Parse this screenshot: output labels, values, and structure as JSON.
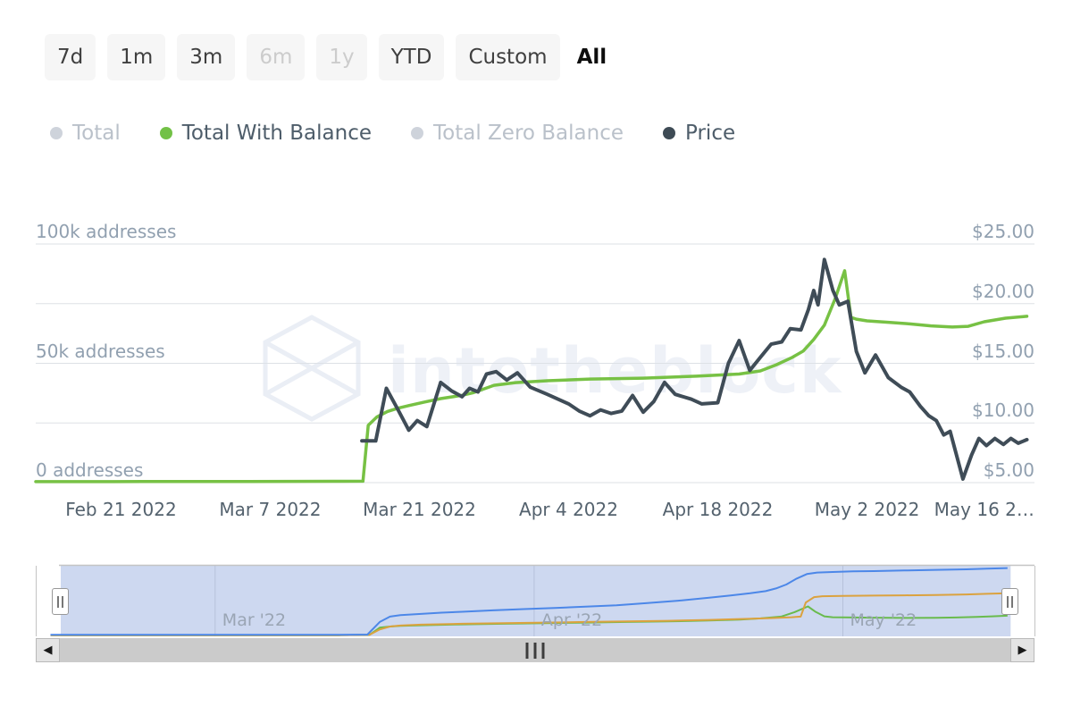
{
  "page": {
    "background": "#ffffff"
  },
  "toolbar": {
    "buttons": [
      {
        "label": "7d",
        "state": "default"
      },
      {
        "label": "1m",
        "state": "default"
      },
      {
        "label": "3m",
        "state": "default"
      },
      {
        "label": "6m",
        "state": "disabled"
      },
      {
        "label": "1y",
        "state": "disabled"
      },
      {
        "label": "YTD",
        "state": "default"
      },
      {
        "label": "Custom",
        "state": "default"
      },
      {
        "label": "All",
        "state": "selected"
      }
    ]
  },
  "legend": {
    "items": [
      {
        "label": "Total",
        "marker_color": "#ced3db",
        "text_color": "#bac1ca",
        "active": false
      },
      {
        "label": "Total With Balance",
        "marker_color": "#72c146",
        "text_color": "#4e5d6a",
        "active": true
      },
      {
        "label": "Total Zero Balance",
        "marker_color": "#ced3db",
        "text_color": "#bac1ca",
        "active": false
      },
      {
        "label": "Price",
        "marker_color": "#3e4b55",
        "text_color": "#4e5d6a",
        "active": true
      }
    ]
  },
  "watermark": {
    "text": "intotheblock"
  },
  "chart_data": {
    "type": "line",
    "title": "",
    "x_axis": {
      "unit": "days since Feb 13 2022",
      "range_days": [
        0,
        93.7
      ],
      "tick_labels": [
        {
          "day": 8,
          "label": "Feb 21 2022"
        },
        {
          "day": 22,
          "label": "Mar 7 2022"
        },
        {
          "day": 36,
          "label": "Mar 21 2022"
        },
        {
          "day": 50,
          "label": "Apr 4 2022"
        },
        {
          "day": 64,
          "label": "Apr 18 2022"
        },
        {
          "day": 78,
          "label": "May 2 2022"
        },
        {
          "day": 89,
          "label": "May 16 2…"
        }
      ]
    },
    "y_left": {
      "title": "addresses",
      "range_k": [
        0,
        100
      ],
      "grid_k": [
        100,
        75,
        50,
        25,
        0
      ],
      "ticks": [
        {
          "k": 100,
          "label": "100k addresses"
        },
        {
          "k": 50,
          "label": "50k addresses"
        },
        {
          "k": 0,
          "label": "0 addresses"
        }
      ]
    },
    "y_right": {
      "title": "price USD",
      "range": [
        5,
        25
      ],
      "ticks": [
        {
          "v": 25,
          "label": "$25.00"
        },
        {
          "v": 20,
          "label": "$20.00"
        },
        {
          "v": 15,
          "label": "$15.00"
        },
        {
          "v": 10,
          "label": "$10.00"
        },
        {
          "v": 5,
          "label": "$5.00"
        }
      ]
    },
    "series": [
      {
        "name": "Total With Balance",
        "axis": "addresses_k",
        "color": "#77c144",
        "width": 3.5,
        "points": [
          [
            0,
            0.4
          ],
          [
            10,
            0.45
          ],
          [
            20,
            0.5
          ],
          [
            28,
            0.55
          ],
          [
            30.7,
            0.6
          ],
          [
            31.2,
            24
          ],
          [
            32,
            27.5
          ],
          [
            33,
            29.8
          ],
          [
            34,
            31.2
          ],
          [
            35,
            32.3
          ],
          [
            36.5,
            33.8
          ],
          [
            38,
            35.2
          ],
          [
            40,
            36.6
          ],
          [
            41,
            37.6
          ],
          [
            43,
            40.8
          ],
          [
            45,
            41.9
          ],
          [
            48,
            42.7
          ],
          [
            52,
            43.4
          ],
          [
            57,
            43.8
          ],
          [
            62,
            44.6
          ],
          [
            66,
            45.5
          ],
          [
            68,
            46.8
          ],
          [
            69.5,
            49.4
          ],
          [
            71,
            52.5
          ],
          [
            72,
            55.1
          ],
          [
            73,
            60
          ],
          [
            74,
            66
          ],
          [
            75,
            77
          ],
          [
            75.9,
            88.8
          ],
          [
            76.5,
            69.3
          ],
          [
            77,
            68.5
          ],
          [
            78,
            67.8
          ],
          [
            80,
            67.2
          ],
          [
            82,
            66.5
          ],
          [
            84,
            65.7
          ],
          [
            86,
            65.2
          ],
          [
            87.5,
            65.5
          ],
          [
            89,
            67.4
          ],
          [
            91,
            68.9
          ],
          [
            93,
            69.7
          ]
        ]
      },
      {
        "name": "Price",
        "axis": "price",
        "color": "#3f4c57",
        "width": 4,
        "points": [
          [
            30.6,
            8.5
          ],
          [
            31.9,
            8.5
          ],
          [
            32.9,
            12.9
          ],
          [
            34,
            11.1
          ],
          [
            35,
            9.4
          ],
          [
            35.8,
            10.2
          ],
          [
            36.7,
            9.7
          ],
          [
            38,
            13.4
          ],
          [
            39,
            12.7
          ],
          [
            40,
            12.2
          ],
          [
            40.7,
            12.9
          ],
          [
            41.5,
            12.6
          ],
          [
            42.3,
            14.1
          ],
          [
            43.2,
            14.3
          ],
          [
            44.2,
            13.6
          ],
          [
            45.2,
            14.2
          ],
          [
            46.4,
            13.0
          ],
          [
            48,
            12.4
          ],
          [
            50,
            11.6
          ],
          [
            51,
            11.0
          ],
          [
            52,
            10.6
          ],
          [
            53,
            11.1
          ],
          [
            54,
            10.8
          ],
          [
            55,
            11.0
          ],
          [
            56,
            12.3
          ],
          [
            57,
            10.9
          ],
          [
            58,
            11.8
          ],
          [
            59,
            13.4
          ],
          [
            60,
            12.4
          ],
          [
            61.5,
            12.0
          ],
          [
            62.5,
            11.6
          ],
          [
            64,
            11.7
          ],
          [
            65,
            15.0
          ],
          [
            66,
            16.9
          ],
          [
            67,
            14.4
          ],
          [
            68,
            15.5
          ],
          [
            69,
            16.6
          ],
          [
            70,
            16.8
          ],
          [
            70.8,
            17.9
          ],
          [
            71.8,
            17.8
          ],
          [
            72.5,
            19.5
          ],
          [
            73,
            21.1
          ],
          [
            73.4,
            19.9
          ],
          [
            74,
            23.7
          ],
          [
            74.8,
            21.1
          ],
          [
            75.4,
            19.9
          ],
          [
            76.2,
            20.2
          ],
          [
            77,
            16.0
          ],
          [
            77.8,
            14.2
          ],
          [
            78.8,
            15.7
          ],
          [
            80,
            13.8
          ],
          [
            81.2,
            13.0
          ],
          [
            82,
            12.6
          ],
          [
            83,
            11.4
          ],
          [
            83.8,
            10.6
          ],
          [
            84.5,
            10.2
          ],
          [
            85.2,
            9.0
          ],
          [
            85.8,
            9.3
          ],
          [
            87,
            5.3
          ],
          [
            87.8,
            7.3
          ],
          [
            88.5,
            8.7
          ],
          [
            89.2,
            8.1
          ],
          [
            90,
            8.7
          ],
          [
            90.8,
            8.2
          ],
          [
            91.5,
            8.7
          ],
          [
            92.2,
            8.3
          ],
          [
            93,
            8.6
          ]
        ]
      }
    ],
    "navigator_series": [
      {
        "name": "Total With Balance",
        "color": "#69bb4d",
        "width": 2,
        "unit": "k addresses",
        "points": [
          [
            0,
            1
          ],
          [
            28,
            1
          ],
          [
            31,
            2
          ],
          [
            32,
            26
          ],
          [
            33,
            30
          ],
          [
            34,
            32
          ],
          [
            36,
            34
          ],
          [
            40,
            37
          ],
          [
            44,
            39
          ],
          [
            48,
            41
          ],
          [
            52,
            43
          ],
          [
            56,
            45
          ],
          [
            60,
            47
          ],
          [
            64,
            50
          ],
          [
            67,
            53
          ],
          [
            69,
            57
          ],
          [
            71,
            63
          ],
          [
            72.3,
            78
          ],
          [
            73.6,
            97
          ],
          [
            74.3,
            80
          ],
          [
            75.2,
            64
          ],
          [
            76,
            61
          ],
          [
            78,
            60
          ],
          [
            80,
            59.5
          ],
          [
            83,
            58.5
          ],
          [
            86,
            59
          ],
          [
            88,
            60
          ],
          [
            90,
            62
          ],
          [
            91.5,
            64
          ],
          [
            93,
            66
          ]
        ]
      },
      {
        "name": "Total Zero Balance",
        "color": "#dba23f",
        "width": 2,
        "unit": "k addresses",
        "points": [
          [
            0,
            1
          ],
          [
            28,
            1
          ],
          [
            31,
            2
          ],
          [
            32,
            20
          ],
          [
            33,
            30
          ],
          [
            34,
            33
          ],
          [
            36,
            36
          ],
          [
            40,
            39
          ],
          [
            44,
            41
          ],
          [
            48,
            43
          ],
          [
            52,
            45
          ],
          [
            56,
            47
          ],
          [
            60,
            49
          ],
          [
            64,
            52
          ],
          [
            67,
            55
          ],
          [
            70,
            58
          ],
          [
            72,
            61
          ],
          [
            72.9,
            63
          ],
          [
            73.4,
            110
          ],
          [
            74.2,
            128
          ],
          [
            75,
            131
          ],
          [
            77,
            132
          ],
          [
            80,
            133
          ],
          [
            83,
            134
          ],
          [
            86,
            135
          ],
          [
            89,
            137
          ],
          [
            91,
            139
          ],
          [
            93,
            141
          ]
        ]
      },
      {
        "name": "Total",
        "color": "#4c87e8",
        "width": 2,
        "unit": "k addresses",
        "points": [
          [
            0,
            2
          ],
          [
            28,
            2
          ],
          [
            30.8,
            3
          ],
          [
            32,
            45
          ],
          [
            33,
            63
          ],
          [
            34,
            68
          ],
          [
            36,
            72
          ],
          [
            38,
            76
          ],
          [
            40,
            79
          ],
          [
            43,
            84
          ],
          [
            46,
            88
          ],
          [
            49,
            92
          ],
          [
            52,
            96
          ],
          [
            55,
            101
          ],
          [
            58,
            108
          ],
          [
            61,
            116
          ],
          [
            64,
            126
          ],
          [
            66,
            133
          ],
          [
            68,
            141
          ],
          [
            69.5,
            148
          ],
          [
            70.5,
            157
          ],
          [
            71.5,
            170
          ],
          [
            72.5,
            190
          ],
          [
            73.5,
            205
          ],
          [
            74.5,
            210
          ],
          [
            76,
            212
          ],
          [
            78,
            214
          ],
          [
            80,
            215
          ],
          [
            83,
            217
          ],
          [
            86,
            219
          ],
          [
            89,
            221
          ],
          [
            91,
            223
          ],
          [
            93,
            225
          ]
        ]
      }
    ]
  },
  "navigator": {
    "band_color": "#cdd8f0",
    "grid_color": "#b6c1da",
    "border_color": "#c4c4c4",
    "selected_range_days": [
      1,
      93.3
    ],
    "month_ticks": [
      {
        "day": 16,
        "label": "Mar '22"
      },
      {
        "day": 47,
        "label": "Apr '22"
      },
      {
        "day": 77,
        "label": "May '22"
      }
    ]
  },
  "scrollbar": {
    "left_arrow": "◀",
    "right_arrow": "▶"
  }
}
